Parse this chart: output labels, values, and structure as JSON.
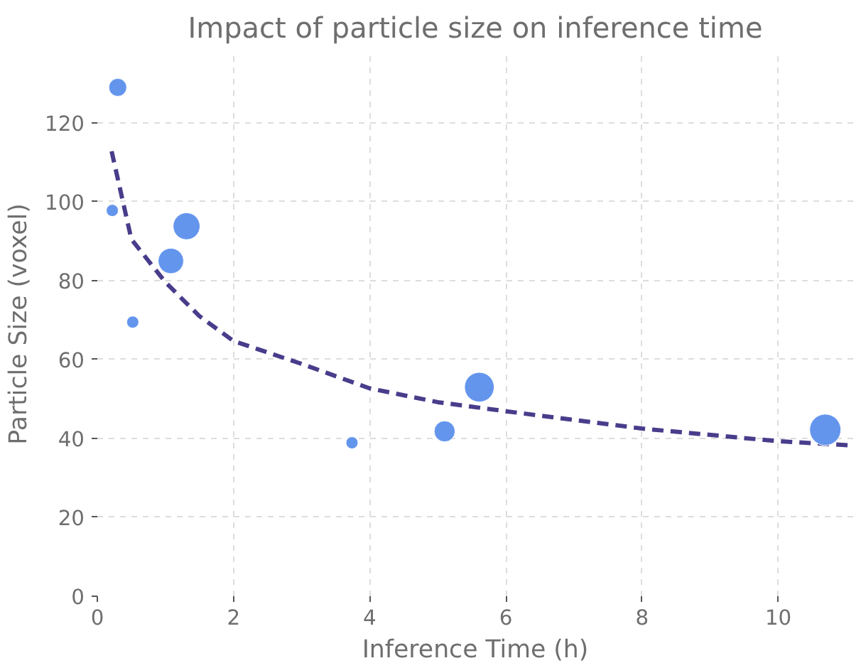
{
  "chart_data": {
    "type": "bubble",
    "title": "Impact of particle size on inference time",
    "xlabel": "Inference Time (h)",
    "ylabel": "Particle Size (voxel)",
    "series": [
      {
        "color": "#6495ed",
        "x": [
          0.3,
          0.22,
          0.52,
          1.08,
          1.31,
          3.74,
          5.1,
          5.61,
          10.69
        ],
        "values": [
          129,
          97.8,
          69.5,
          85,
          93.8,
          38.9,
          41.8,
          53,
          42.2
        ],
        "sizes": [
          0.33,
          0.15,
          0.15,
          0.66,
          0.74,
          0.15,
          0.45,
          0.9,
          1
        ]
      },
      {
        "type": "line",
        "color": "#483d8b",
        "line_style": "dashed",
        "marker": "none",
        "x": [
          0.21,
          0.5,
          1,
          1.5,
          2,
          3,
          4,
          5,
          6,
          8,
          10,
          11.1
        ],
        "values": [
          112.8,
          90.5,
          79.6,
          71,
          64.7,
          58.9,
          52.7,
          49.2,
          46.9,
          42.5,
          39.3,
          38.2
        ]
      }
    ],
    "xlim": [
      0,
      11.1
    ],
    "ylim": [
      0,
      138
    ],
    "xticks": [
      0,
      2,
      4,
      6,
      8,
      10
    ],
    "yticks": [
      0,
      20,
      40,
      60,
      80,
      100,
      120
    ],
    "grid": true
  }
}
